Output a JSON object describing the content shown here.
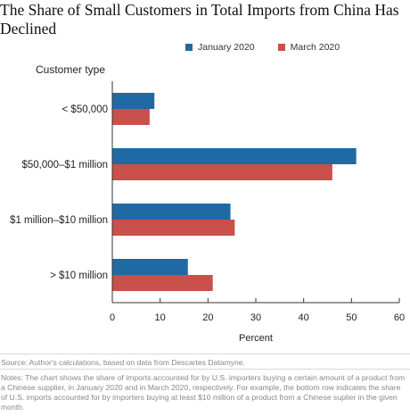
{
  "title": "The Share of Small Customers in Total Imports from China Has Declined",
  "chart_data": {
    "type": "bar",
    "orientation": "horizontal",
    "categories": [
      "< $50,000",
      "$50,000–$1 million",
      "$1 million–$10 million",
      "> $10 million"
    ],
    "series": [
      {
        "name": "January 2020",
        "values": [
          8.8,
          51.0,
          24.7,
          15.8
        ],
        "color": "#1f6aa5"
      },
      {
        "name": "March 2020",
        "values": [
          7.8,
          46.0,
          25.6,
          21.0
        ],
        "color": "#c9504b"
      }
    ],
    "ylabel": "Customer type",
    "xlabel": "Percent",
    "xlim": [
      0,
      60
    ],
    "xticks": [
      "0",
      "10",
      "20",
      "30",
      "40",
      "50",
      "60"
    ],
    "grid": false,
    "legend_position": "top"
  },
  "source": "Source: Author's calculations, based on data from Descartes Datamyne.",
  "notes": "Notes: The chart shows the share of imports accounted for by U.S. importers buying a certain amount of a product from a Chinese supplier, in January 2020 and in March 2020, respectively. For example, the bottom row indicates the share of U.S. imports accounted for by importers buying at least $10 million of a product from a Chinese suplier in the given month."
}
